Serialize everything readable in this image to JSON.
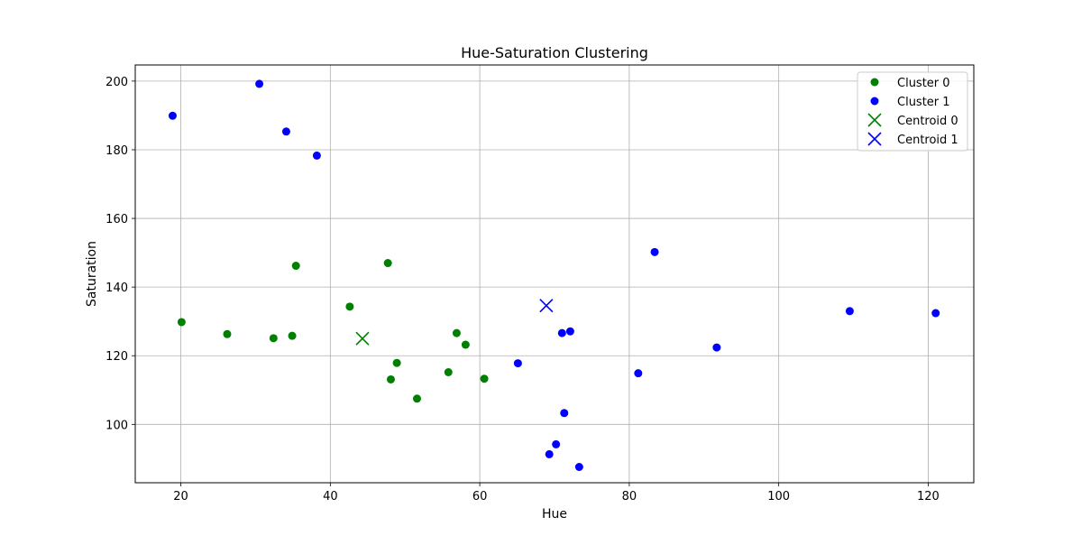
{
  "chart_data": {
    "type": "scatter",
    "title": "Hue-Saturation Clustering",
    "xlabel": "Hue",
    "ylabel": "Saturation",
    "xlim": [
      13.9,
      126.1
    ],
    "ylim": [
      83.0,
      204.7
    ],
    "xticks": [
      20,
      40,
      60,
      80,
      100,
      120
    ],
    "yticks": [
      100,
      120,
      140,
      160,
      180,
      200
    ],
    "grid": true,
    "legend_position": "top-right",
    "series": [
      {
        "name": "Cluster 0",
        "kind": "points",
        "color": "#008000",
        "points": [
          [
            20.1,
            129.8
          ],
          [
            26.2,
            126.3
          ],
          [
            32.4,
            125.1
          ],
          [
            34.9,
            125.8
          ],
          [
            35.4,
            146.2
          ],
          [
            42.6,
            134.3
          ],
          [
            47.7,
            147.0
          ],
          [
            48.1,
            113.1
          ],
          [
            48.9,
            117.9
          ],
          [
            51.6,
            107.5
          ],
          [
            55.8,
            115.2
          ],
          [
            56.9,
            126.6
          ],
          [
            58.1,
            123.2
          ],
          [
            60.6,
            113.3
          ]
        ]
      },
      {
        "name": "Cluster 1",
        "kind": "points",
        "color": "#0000ff",
        "points": [
          [
            18.9,
            189.9
          ],
          [
            30.5,
            199.2
          ],
          [
            34.1,
            185.3
          ],
          [
            38.2,
            178.3
          ],
          [
            65.1,
            117.8
          ],
          [
            69.3,
            91.3
          ],
          [
            70.2,
            94.2
          ],
          [
            71.0,
            126.6
          ],
          [
            71.3,
            103.3
          ],
          [
            72.1,
            127.1
          ],
          [
            73.3,
            87.6
          ],
          [
            81.2,
            114.9
          ],
          [
            83.4,
            150.2
          ],
          [
            91.7,
            122.4
          ],
          [
            109.5,
            133.0
          ],
          [
            121.0,
            132.4
          ]
        ]
      },
      {
        "name": "Centroid 0",
        "kind": "centroid",
        "color": "#008000",
        "points": [
          [
            44.3,
            125.0
          ]
        ]
      },
      {
        "name": "Centroid 1",
        "kind": "centroid",
        "color": "#0000ff",
        "points": [
          [
            68.9,
            134.6
          ]
        ]
      }
    ]
  }
}
